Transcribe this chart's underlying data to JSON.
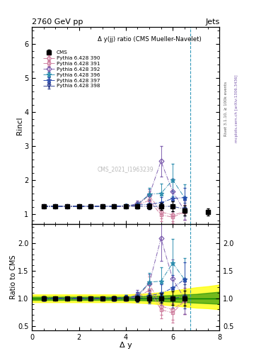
{
  "title_left": "2760 GeV pp",
  "title_right": "Jets",
  "right_label_top": "Rivet 3.1.10, ≥ 100k events",
  "right_label_bottom": "mcplots.cern.ch [arXiv:1306.3436]",
  "plot_label": "CMS_2021_I1963239",
  "annotation": "Δ y(jj) ratio (CMS Mueller-Navelet)",
  "ylabel_main": "Rincl",
  "ylabel_ratio": "Ratio to CMS",
  "xlabel": "Δ y",
  "ylim_main": [
    0.7,
    6.5
  ],
  "ylim_ratio": [
    0.42,
    2.35
  ],
  "yticks_main": [
    1,
    2,
    3,
    4,
    5,
    6
  ],
  "yticks_ratio": [
    0.5,
    1.0,
    1.5,
    2.0
  ],
  "xlim": [
    0,
    8
  ],
  "xticks": [
    0,
    2,
    4,
    6,
    8
  ],
  "vline_x": 6.75,
  "cms_x": [
    0.5,
    1.0,
    1.5,
    2.0,
    2.5,
    3.0,
    3.5,
    4.0,
    4.5,
    5.0,
    5.5,
    6.0,
    6.5,
    7.5
  ],
  "cms_y": [
    1.22,
    1.22,
    1.22,
    1.22,
    1.22,
    1.22,
    1.22,
    1.22,
    1.22,
    1.22,
    1.22,
    1.22,
    1.1,
    1.05
  ],
  "cms_yerr": [
    0.04,
    0.03,
    0.03,
    0.03,
    0.03,
    0.03,
    0.04,
    0.04,
    0.06,
    0.08,
    0.1,
    0.15,
    0.15,
    0.1
  ],
  "series": [
    {
      "label": "Pythia 6.428 390",
      "color": "#cc7799",
      "marker": "o",
      "mfc": "none",
      "x": [
        0.5,
        1.0,
        1.5,
        2.0,
        2.5,
        3.0,
        3.5,
        4.0,
        4.5,
        5.0,
        5.5,
        6.0,
        6.5
      ],
      "y": [
        1.22,
        1.22,
        1.22,
        1.22,
        1.22,
        1.22,
        1.22,
        1.22,
        1.25,
        1.55,
        1.05,
        0.97,
        1.05
      ],
      "yerr": [
        0.03,
        0.02,
        0.02,
        0.02,
        0.02,
        0.02,
        0.03,
        0.04,
        0.07,
        0.12,
        0.18,
        0.18,
        0.22
      ]
    },
    {
      "label": "Pythia 6.428 391",
      "color": "#cc7799",
      "marker": "s",
      "mfc": "none",
      "x": [
        0.5,
        1.0,
        1.5,
        2.0,
        2.5,
        3.0,
        3.5,
        4.0,
        4.5,
        5.0,
        5.5,
        6.0,
        6.5
      ],
      "y": [
        1.22,
        1.22,
        1.22,
        1.22,
        1.22,
        1.22,
        1.22,
        1.22,
        1.25,
        1.4,
        0.97,
        0.9,
        1.05
      ],
      "yerr": [
        0.03,
        0.02,
        0.02,
        0.02,
        0.02,
        0.02,
        0.03,
        0.04,
        0.07,
        0.12,
        0.18,
        0.18,
        0.22
      ]
    },
    {
      "label": "Pythia 6.428 392",
      "color": "#7755aa",
      "marker": "D",
      "mfc": "none",
      "x": [
        0.5,
        1.0,
        1.5,
        2.0,
        2.5,
        3.0,
        3.5,
        4.0,
        4.5,
        5.0,
        5.5,
        6.0,
        6.5
      ],
      "y": [
        1.22,
        1.22,
        1.22,
        1.22,
        1.22,
        1.22,
        1.22,
        1.22,
        1.3,
        1.55,
        2.55,
        1.65,
        1.1
      ],
      "yerr": [
        0.03,
        0.02,
        0.02,
        0.02,
        0.02,
        0.02,
        0.03,
        0.04,
        0.08,
        0.18,
        0.45,
        0.38,
        0.28
      ]
    },
    {
      "label": "Pythia 6.428 396",
      "color": "#2288aa",
      "marker": "*",
      "mfc": "none",
      "x": [
        0.5,
        1.0,
        1.5,
        2.0,
        2.5,
        3.0,
        3.5,
        4.0,
        4.5,
        5.0,
        5.5,
        6.0,
        6.5
      ],
      "y": [
        1.22,
        1.22,
        1.22,
        1.22,
        1.22,
        1.22,
        1.22,
        1.24,
        1.26,
        1.58,
        1.6,
        2.0,
        1.48
      ],
      "yerr": [
        0.03,
        0.02,
        0.02,
        0.02,
        0.02,
        0.02,
        0.03,
        0.04,
        0.08,
        0.18,
        0.28,
        0.48,
        0.38
      ]
    },
    {
      "label": "Pythia 6.428 397",
      "color": "#2244aa",
      "marker": "*",
      "mfc": "none",
      "x": [
        0.5,
        1.0,
        1.5,
        2.0,
        2.5,
        3.0,
        3.5,
        4.0,
        4.5,
        5.0,
        5.5,
        6.0,
        6.5
      ],
      "y": [
        1.22,
        1.22,
        1.22,
        1.22,
        1.22,
        1.22,
        1.22,
        1.24,
        1.26,
        1.28,
        1.33,
        1.45,
        1.48
      ],
      "yerr": [
        0.03,
        0.02,
        0.02,
        0.02,
        0.02,
        0.02,
        0.03,
        0.04,
        0.07,
        0.1,
        0.16,
        0.22,
        0.28
      ]
    },
    {
      "label": "Pythia 6.428 398",
      "color": "#223388",
      "marker": "v",
      "mfc": "none",
      "x": [
        0.5,
        1.0,
        1.5,
        2.0,
        2.5,
        3.0,
        3.5,
        4.0,
        4.5,
        5.0,
        5.5,
        6.0,
        6.5
      ],
      "y": [
        1.22,
        1.22,
        1.22,
        1.22,
        1.22,
        1.22,
        1.22,
        1.22,
        1.22,
        1.22,
        1.22,
        1.22,
        1.14
      ],
      "yerr": [
        0.03,
        0.02,
        0.02,
        0.02,
        0.02,
        0.02,
        0.03,
        0.04,
        0.06,
        0.08,
        0.1,
        0.14,
        0.19
      ]
    }
  ],
  "band_green": [
    0.96,
    1.04
  ],
  "band_yellow": [
    0.91,
    1.12
  ]
}
